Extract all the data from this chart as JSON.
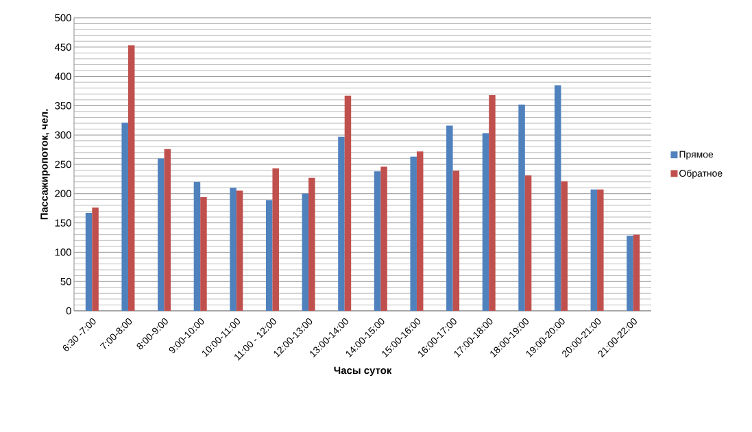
{
  "chart_data": {
    "type": "bar",
    "xlabel": "Часы суток",
    "ylabel": "Пассажиропоток, чел.",
    "categories": [
      "6:30 -7:00",
      "7:00-8:00",
      "8:00-9:00",
      "9:00-10:00",
      "10:00-11:00",
      "11:00 - 12:00",
      "12:00-13:00",
      "13:00-14:00",
      "14:00-15:00",
      "15:00-16:00",
      "16:00-17:00",
      "17:00-18:00",
      "18:00-19:00",
      "19:00-20:00",
      "20:00-21:00",
      "21:00-22:00"
    ],
    "series": [
      {
        "name": "Прямое",
        "color": "#4f81bd",
        "values": [
          167,
          321,
          260,
          220,
          210,
          189,
          200,
          297,
          238,
          263,
          316,
          303,
          352,
          385,
          207,
          128
        ]
      },
      {
        "name": "Обратное",
        "color": "#c0504d",
        "values": [
          176,
          453,
          276,
          194,
          205,
          243,
          227,
          367,
          246,
          272,
          239,
          368,
          231,
          221,
          207,
          130
        ]
      }
    ],
    "ylim": [
      0,
      500
    ],
    "yticks": [
      0,
      50,
      100,
      150,
      200,
      250,
      300,
      350,
      400,
      450,
      500
    ],
    "grid": true,
    "legend": "right"
  }
}
